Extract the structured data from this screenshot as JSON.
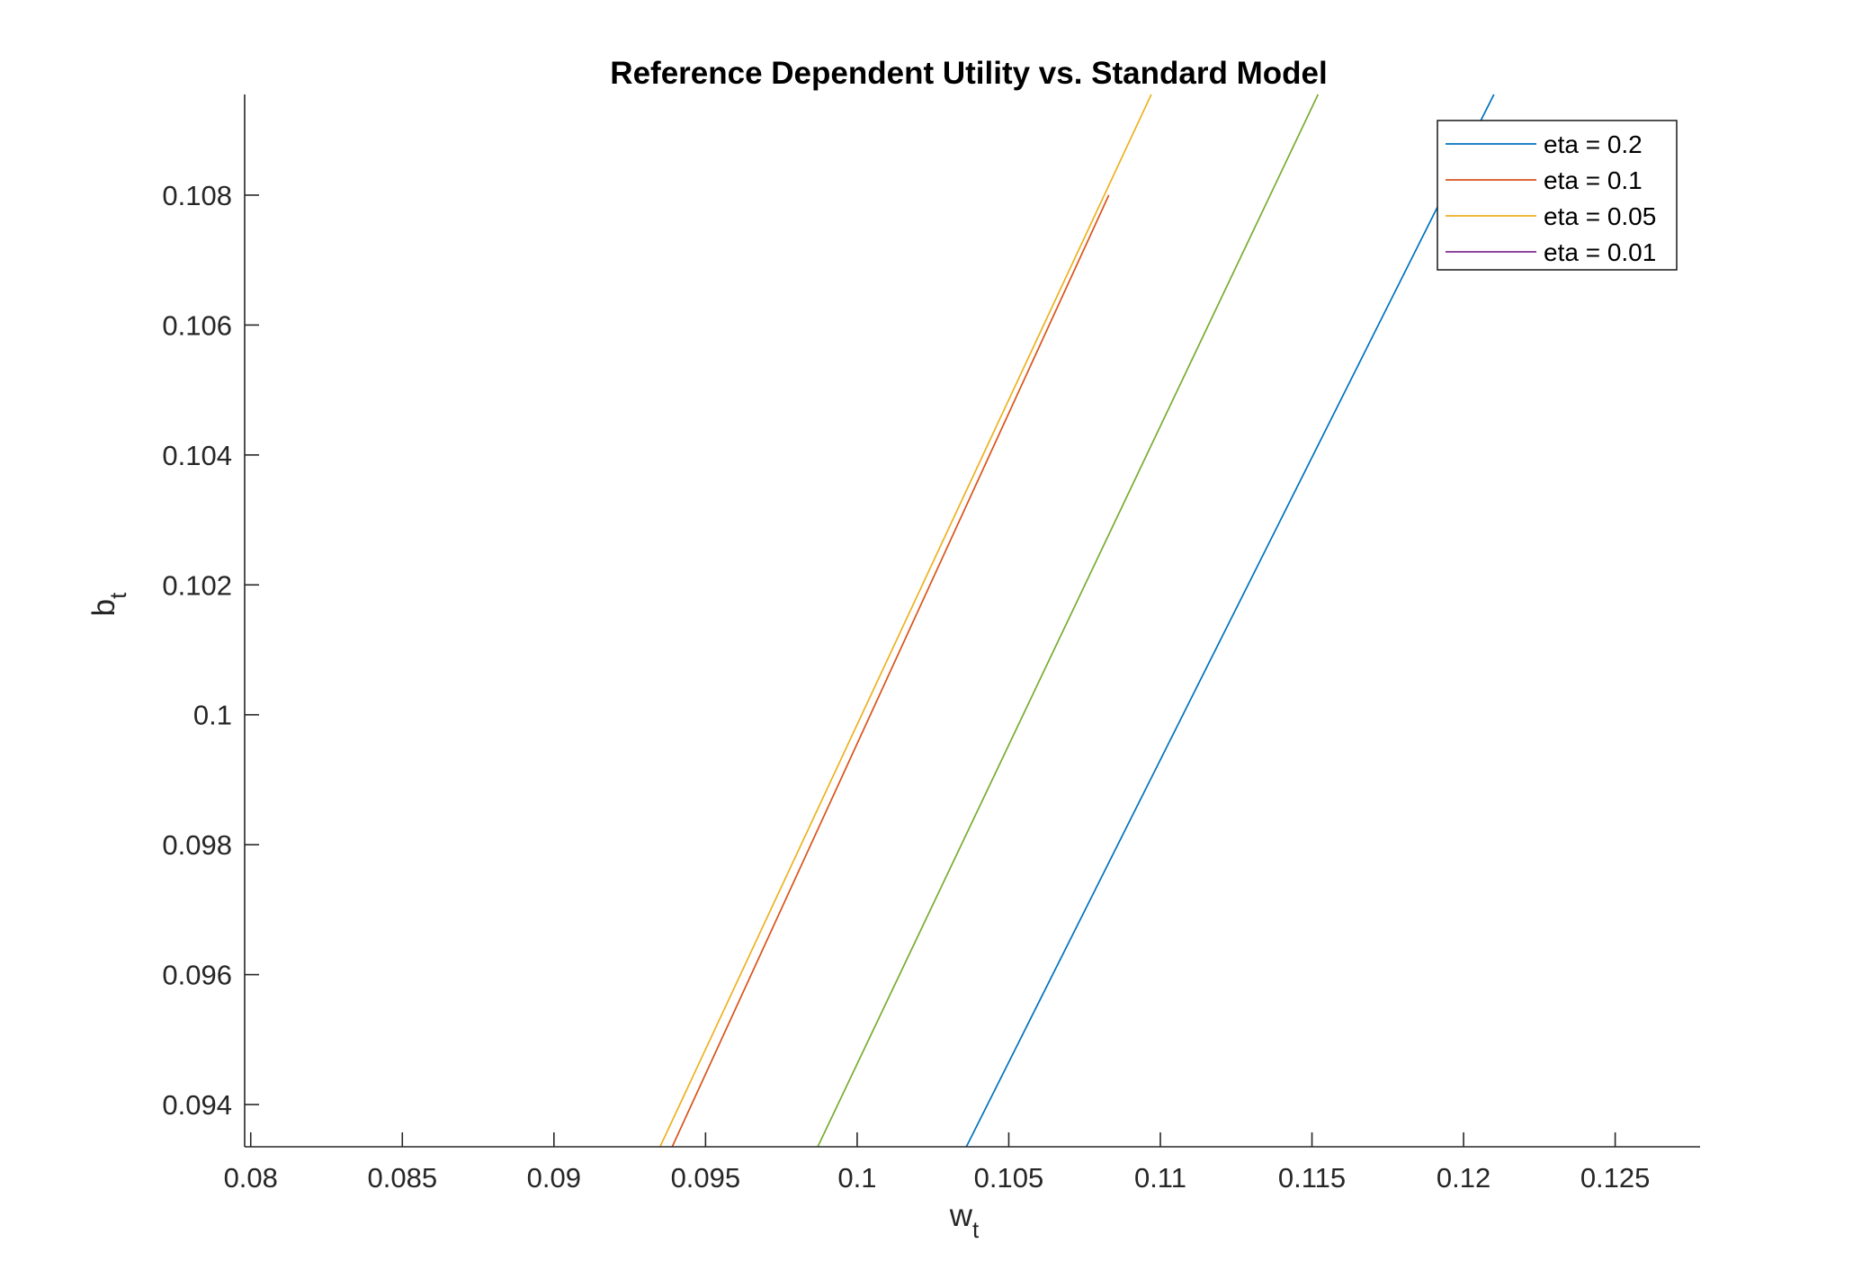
{
  "chart_data": {
    "type": "line",
    "title": "Reference Dependent Utility vs. Standard Model",
    "xlabel": "w",
    "xlabel_sub": "t",
    "ylabel": "b",
    "ylabel_sub": "t",
    "xlim": [
      0.0798,
      0.1278
    ],
    "ylim": [
      0.09335,
      0.10955
    ],
    "xticks": [
      0.08,
      0.085,
      0.09,
      0.095,
      0.1,
      0.105,
      0.11,
      0.115,
      0.12,
      0.125
    ],
    "xtick_labels": [
      "0.08",
      "0.085",
      "0.09",
      "0.095",
      "0.1",
      "0.105",
      "0.11",
      "0.115",
      "0.12",
      "0.125"
    ],
    "yticks": [
      0.094,
      0.096,
      0.098,
      0.1,
      0.102,
      0.104,
      0.106,
      0.108
    ],
    "ytick_labels": [
      "0.094",
      "0.096",
      "0.098",
      "0.1",
      "0.102",
      "0.104",
      "0.106",
      "0.108"
    ],
    "grid": false,
    "legend_position": "top-right",
    "series": [
      {
        "name": "eta = 0.2",
        "color": "#0072BD",
        "x": [
          0.1036,
          0.121
        ],
        "y": [
          0.09335,
          0.10955
        ]
      },
      {
        "name": "eta = 0.1",
        "color": "#D95319",
        "x": [
          0.0939,
          0.1083
        ],
        "y": [
          0.09335,
          0.108
        ]
      },
      {
        "name": "eta = 0.05",
        "color": "#EDB120",
        "x": [
          0.0935,
          0.1097
        ],
        "y": [
          0.09335,
          0.10955
        ]
      },
      {
        "name": "eta = 0.01",
        "color": "#7E2F8E",
        "x": [
          0.0987,
          0.1152
        ],
        "y": [
          0.09335,
          0.10955
        ]
      }
    ],
    "extra_series_colors": [
      "#77AC30"
    ]
  }
}
